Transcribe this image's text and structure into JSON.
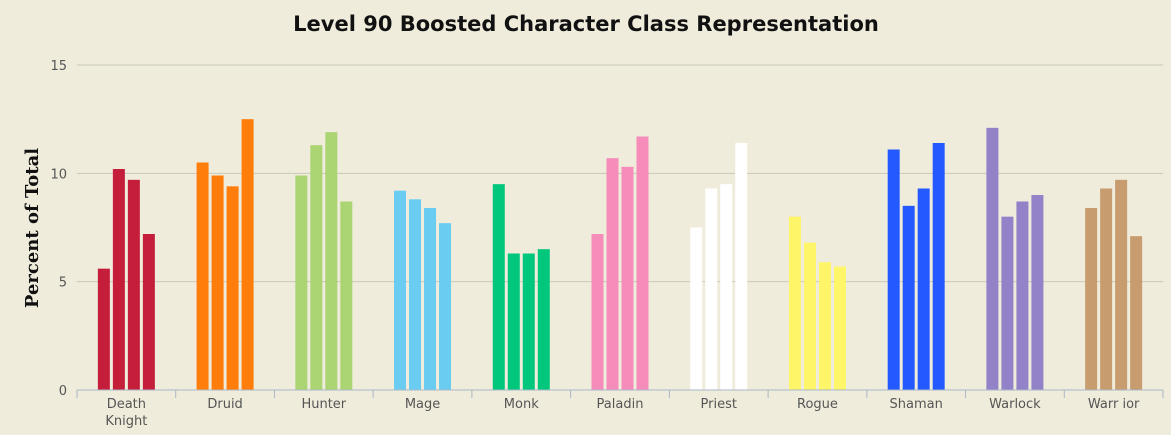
{
  "chart_data": {
    "type": "bar",
    "title": "Level 90 Boosted Character Class Representation",
    "xlabel": "",
    "ylabel": "Percent of Total",
    "ylim": [
      0,
      15
    ],
    "yticks": [
      0,
      5,
      10,
      15
    ],
    "grid": true,
    "categories": [
      [
        "Death",
        "Knight"
      ],
      [
        "Druid"
      ],
      [
        "Hunter"
      ],
      [
        "Mage"
      ],
      [
        "Monk"
      ],
      [
        "Paladin"
      ],
      [
        "Priest"
      ],
      [
        "Rogue"
      ],
      [
        "Shaman"
      ],
      [
        "Warlock"
      ],
      [
        "Warr ior"
      ]
    ],
    "colors": [
      "#c41e3a",
      "#ff7d0a",
      "#abd473",
      "#69ccf0",
      "#00c77b",
      "#f58cba",
      "#ffffff",
      "#fff569",
      "#2459ff",
      "#9482c9",
      "#c79c6e"
    ],
    "values": [
      [
        5.6,
        10.2,
        9.7,
        7.2
      ],
      [
        10.5,
        9.9,
        9.4,
        12.5
      ],
      [
        9.9,
        11.3,
        11.9,
        8.7
      ],
      [
        9.2,
        8.8,
        8.4,
        7.7
      ],
      [
        9.5,
        6.3,
        6.3,
        6.5
      ],
      [
        7.2,
        10.7,
        10.3,
        11.7
      ],
      [
        7.5,
        9.3,
        9.5,
        11.4
      ],
      [
        8.0,
        6.8,
        5.9,
        5.7
      ],
      [
        11.1,
        8.5,
        9.3,
        11.4
      ],
      [
        12.1,
        8.0,
        8.7,
        9.0
      ],
      [
        8.4,
        9.3,
        9.7,
        7.1
      ]
    ]
  }
}
